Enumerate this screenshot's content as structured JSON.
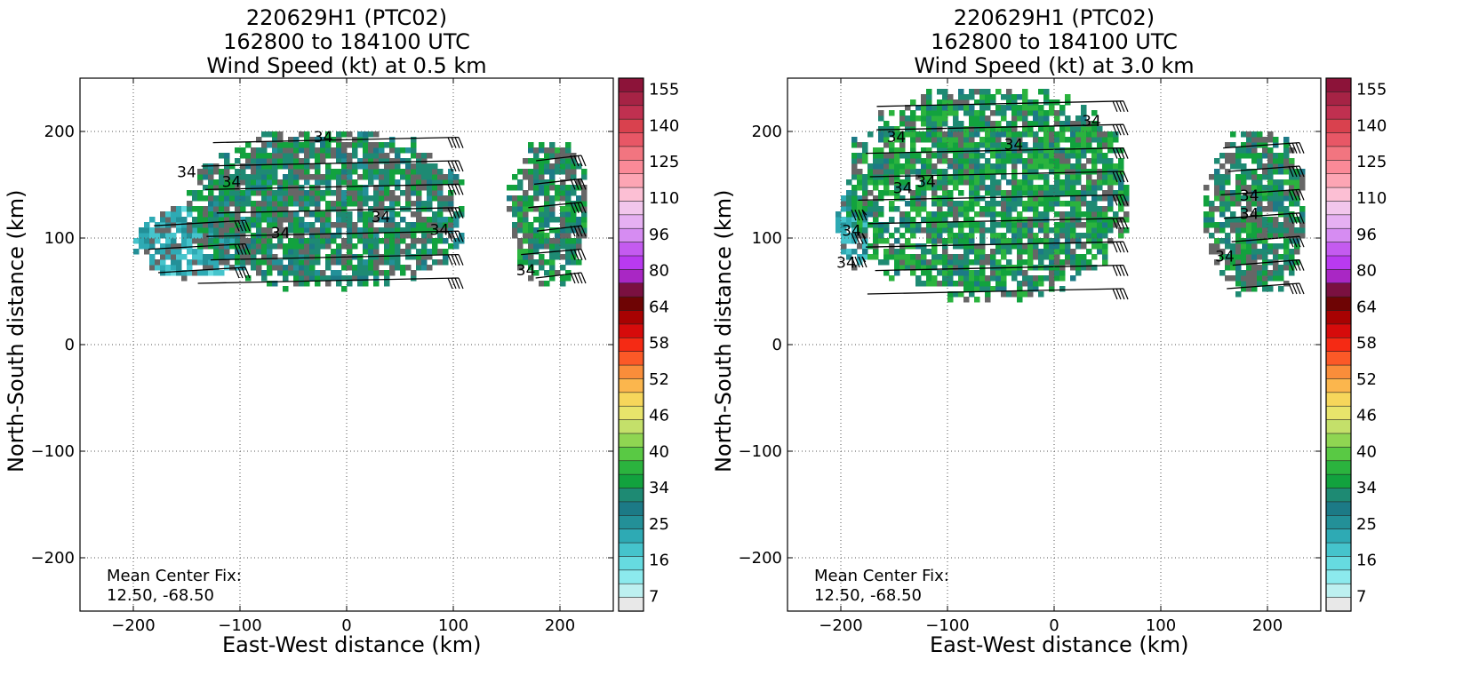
{
  "panels": [
    {
      "title": [
        "220629H1 (PTC02)",
        "162800 to 184100 UTC",
        "Wind Speed (kt) at 0.5 km"
      ],
      "level": "0.5"
    },
    {
      "title": [
        "220629H1 (PTC02)",
        "162800 to 184100 UTC",
        "Wind Speed (kt) at 3.0 km"
      ],
      "level": "3.0"
    }
  ],
  "xlabel": "East-West distance (km)",
  "ylabel": "North-South distance (km)",
  "center_fix": {
    "label": "Mean Center Fix:",
    "value": "12.50, -68.50"
  },
  "contour_label": "34",
  "colorbar": {
    "labels": [
      "155",
      "140",
      "125",
      "110",
      "96",
      "80",
      "64",
      "58",
      "52",
      "46",
      "40",
      "34",
      "25",
      "16",
      "7"
    ],
    "colors_top_to_bottom": [
      "#8c1339",
      "#a62345",
      "#c03050",
      "#d9414e",
      "#e85766",
      "#f27580",
      "#fb8a98",
      "#fda5b4",
      "#fcbfd4",
      "#f2c6ec",
      "#e6b0f2",
      "#d68cf2",
      "#c45bf0",
      "#b93af0",
      "#a927c4",
      "#7a1040",
      "#6e0404",
      "#a80202",
      "#d60b0b",
      "#f52a14",
      "#fb5927",
      "#f98d3a",
      "#fbb64d",
      "#f6d65b",
      "#e8e46b",
      "#c4e06a",
      "#8fd552",
      "#59c944",
      "#2bb33e",
      "#12a23e",
      "#1e8a73",
      "#1c7a86",
      "#239098",
      "#2eaab4",
      "#45c4cc",
      "#66dbe0",
      "#8ceaed",
      "#bdf0f0",
      "#e8e8e8"
    ]
  },
  "chart_data": [
    {
      "type": "heatmap",
      "title": "220629H1 (PTC02) 162800 to 184100 UTC Wind Speed (kt) at 0.5 km",
      "xlabel": "East-West distance (km)",
      "ylabel": "North-South distance (km)",
      "xlim": [
        -250,
        250
      ],
      "ylim": [
        -250,
        250
      ],
      "xticks": [
        -200,
        -100,
        0,
        100,
        200
      ],
      "yticks": [
        -200,
        -100,
        0,
        100,
        200
      ],
      "grid": true,
      "colorbar_ticks": [
        7,
        16,
        25,
        34,
        40,
        46,
        52,
        58,
        64,
        80,
        96,
        110,
        125,
        140,
        155
      ],
      "contour_34kt_label_positions": [
        [
          -22,
          190
        ],
        [
          -150,
          157
        ],
        [
          -108,
          148
        ],
        [
          32,
          115
        ],
        [
          -62,
          100
        ],
        [
          87,
          103
        ],
        [
          168,
          65
        ]
      ],
      "wind_regions": [
        {
          "x_range": [
            -200,
            -90
          ],
          "y_range": [
            60,
            130
          ],
          "approx_speed_kt": 27
        },
        {
          "x_range": [
            -150,
            110
          ],
          "y_range": [
            50,
            200
          ],
          "approx_speed_kt": 37
        },
        {
          "x_range": [
            150,
            225
          ],
          "y_range": [
            55,
            190
          ],
          "approx_speed_kt": 38
        }
      ],
      "annotation": "Mean Center Fix: 12.50, -68.50"
    },
    {
      "type": "heatmap",
      "title": "220629H1 (PTC02) 162800 to 184100 UTC Wind Speed (kt) at 3.0 km",
      "xlabel": "East-West distance (km)",
      "ylabel": "North-South distance (km)",
      "xlim": [
        -250,
        250
      ],
      "ylim": [
        -250,
        250
      ],
      "xticks": [
        -200,
        -100,
        0,
        100,
        200
      ],
      "yticks": [
        -200,
        -100,
        0,
        100,
        200
      ],
      "grid": true,
      "colorbar_ticks": [
        7,
        16,
        25,
        34,
        40,
        46,
        52,
        58,
        64,
        80,
        96,
        110,
        125,
        140,
        155
      ],
      "contour_34kt_label_positions": [
        [
          -148,
          190
        ],
        [
          -38,
          183
        ],
        [
          35,
          205
        ],
        [
          -142,
          142
        ],
        [
          -120,
          148
        ],
        [
          -190,
          102
        ],
        [
          -195,
          72
        ],
        [
          183,
          135
        ],
        [
          183,
          118
        ],
        [
          160,
          78
        ]
      ],
      "wind_regions": [
        {
          "x_range": [
            -205,
            -175
          ],
          "y_range": [
            70,
            150
          ],
          "approx_speed_kt": 28
        },
        {
          "x_range": [
            -195,
            70
          ],
          "y_range": [
            40,
            240
          ],
          "approx_speed_kt": 40
        },
        {
          "x_range": [
            140,
            235
          ],
          "y_range": [
            45,
            200
          ],
          "approx_speed_kt": 38
        }
      ],
      "annotation": "Mean Center Fix: 12.50, -68.50"
    }
  ]
}
